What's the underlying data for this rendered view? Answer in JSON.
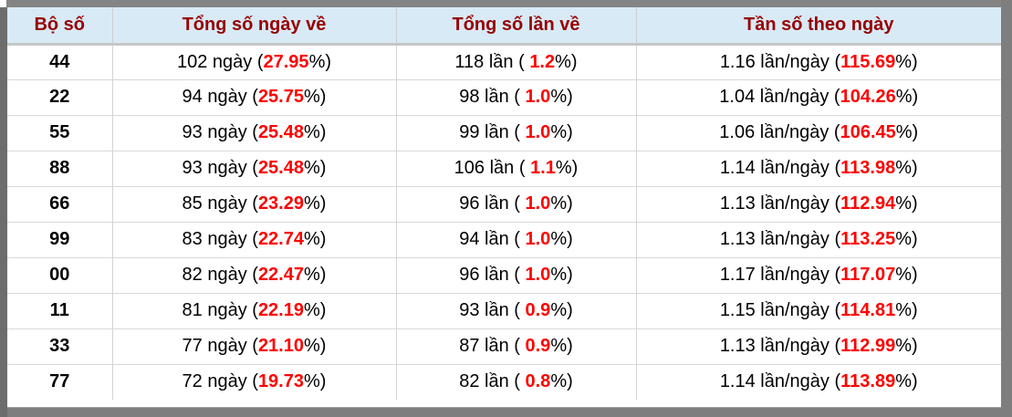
{
  "colors": {
    "header_background": "#d8eaf6",
    "header_text": "#970000",
    "highlight_red": "#ff0000",
    "body_text": "#000000",
    "frame_gray": "#7e7e7e"
  },
  "table": {
    "headers": [
      "Bộ số",
      "Tổng số ngày về",
      "Tổng số lần về",
      "Tần số theo ngày"
    ],
    "rows": [
      {
        "pair": "44",
        "days": {
          "prefix": "102 ngày (",
          "value": "27.95",
          "suffix": "%)"
        },
        "times": {
          "prefix": "118 lần ( ",
          "value": "1.2",
          "suffix": "%)"
        },
        "freq": {
          "prefix": "1.16 lần/ngày (",
          "value": "115.69",
          "suffix": "%)"
        }
      },
      {
        "pair": "22",
        "days": {
          "prefix": "94 ngày (",
          "value": "25.75",
          "suffix": "%)"
        },
        "times": {
          "prefix": "98 lần ( ",
          "value": "1.0",
          "suffix": "%)"
        },
        "freq": {
          "prefix": "1.04 lần/ngày (",
          "value": "104.26",
          "suffix": "%)"
        }
      },
      {
        "pair": "55",
        "days": {
          "prefix": "93 ngày (",
          "value": "25.48",
          "suffix": "%)"
        },
        "times": {
          "prefix": "99 lần ( ",
          "value": "1.0",
          "suffix": "%)"
        },
        "freq": {
          "prefix": "1.06 lần/ngày (",
          "value": "106.45",
          "suffix": "%)"
        }
      },
      {
        "pair": "88",
        "days": {
          "prefix": "93 ngày (",
          "value": "25.48",
          "suffix": "%)"
        },
        "times": {
          "prefix": "106 lần ( ",
          "value": "1.1",
          "suffix": "%)"
        },
        "freq": {
          "prefix": "1.14 lần/ngày (",
          "value": "113.98",
          "suffix": "%)"
        }
      },
      {
        "pair": "66",
        "days": {
          "prefix": "85 ngày (",
          "value": "23.29",
          "suffix": "%)"
        },
        "times": {
          "prefix": "96 lần ( ",
          "value": "1.0",
          "suffix": "%)"
        },
        "freq": {
          "prefix": "1.13 lần/ngày (",
          "value": "112.94",
          "suffix": "%)"
        }
      },
      {
        "pair": "99",
        "days": {
          "prefix": "83 ngày (",
          "value": "22.74",
          "suffix": "%)"
        },
        "times": {
          "prefix": "94 lần ( ",
          "value": "1.0",
          "suffix": "%)"
        },
        "freq": {
          "prefix": "1.13 lần/ngày (",
          "value": "113.25",
          "suffix": "%)"
        }
      },
      {
        "pair": "00",
        "days": {
          "prefix": "82 ngày (",
          "value": "22.47",
          "suffix": "%)"
        },
        "times": {
          "prefix": "96 lần ( ",
          "value": "1.0",
          "suffix": "%)"
        },
        "freq": {
          "prefix": "1.17 lần/ngày (",
          "value": "117.07",
          "suffix": "%)"
        }
      },
      {
        "pair": "11",
        "days": {
          "prefix": "81 ngày (",
          "value": "22.19",
          "suffix": "%)"
        },
        "times": {
          "prefix": "93 lần ( ",
          "value": "0.9",
          "suffix": "%)"
        },
        "freq": {
          "prefix": "1.15 lần/ngày (",
          "value": "114.81",
          "suffix": "%)"
        }
      },
      {
        "pair": "33",
        "days": {
          "prefix": "77 ngày (",
          "value": "21.10",
          "suffix": "%)"
        },
        "times": {
          "prefix": "87 lần ( ",
          "value": "0.9",
          "suffix": "%)"
        },
        "freq": {
          "prefix": "1.13 lần/ngày (",
          "value": "112.99",
          "suffix": "%)"
        }
      },
      {
        "pair": "77",
        "days": {
          "prefix": "72 ngày (",
          "value": "19.73",
          "suffix": "%)"
        },
        "times": {
          "prefix": "82 lần ( ",
          "value": "0.8",
          "suffix": "%)"
        },
        "freq": {
          "prefix": "1.14 lần/ngày (",
          "value": "113.89",
          "suffix": "%)"
        }
      }
    ]
  }
}
